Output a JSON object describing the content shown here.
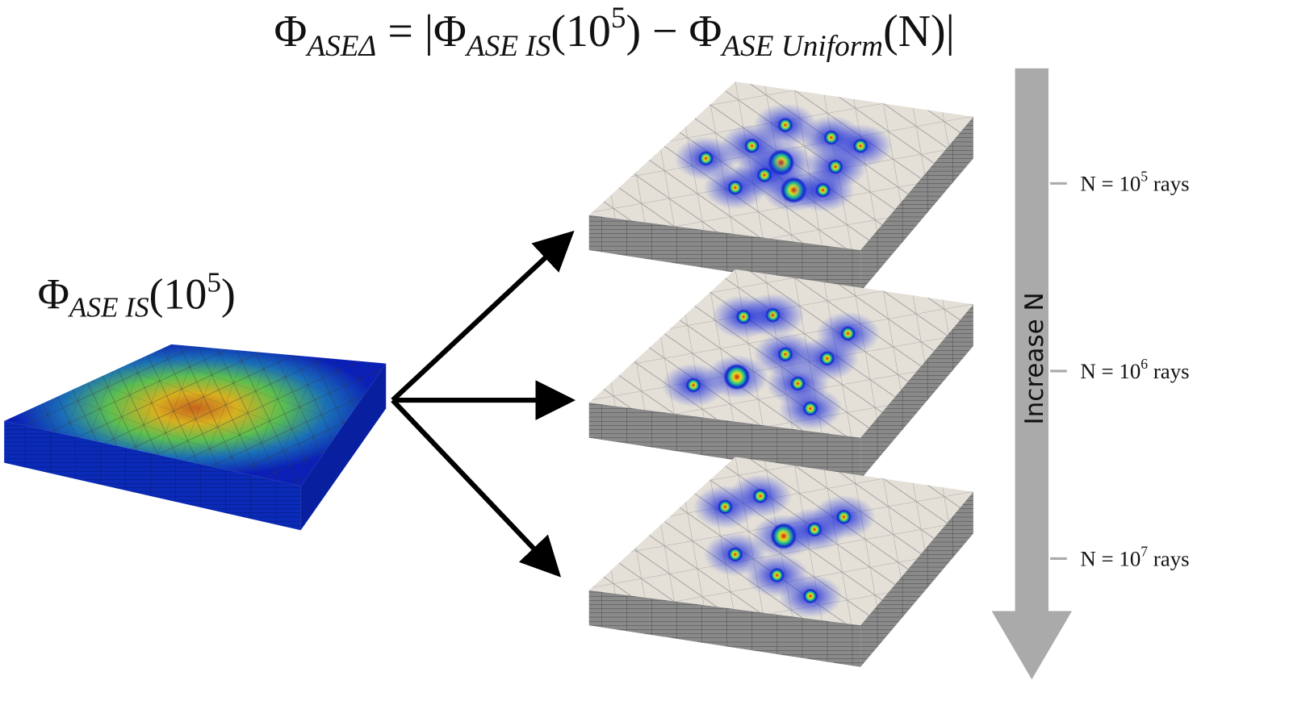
{
  "formula": {
    "parts": [
      "Φ",
      "ASEΔ",
      " = |Φ",
      "ASE IS",
      "(10",
      "5",
      ") − Φ",
      "ASE Uniform",
      "(N)|"
    ]
  },
  "source_label": {
    "parts": [
      "Φ",
      "ASE IS",
      "(10",
      "5",
      ")"
    ]
  },
  "axis_label": "Increase N",
  "levels": [
    {
      "prefix": "N = 10",
      "exponent": "5",
      "suffix": " rays"
    },
    {
      "prefix": "N = 10",
      "exponent": "6",
      "suffix": " rays"
    },
    {
      "prefix": "N = 10",
      "exponent": "7",
      "suffix": " rays"
    }
  ]
}
